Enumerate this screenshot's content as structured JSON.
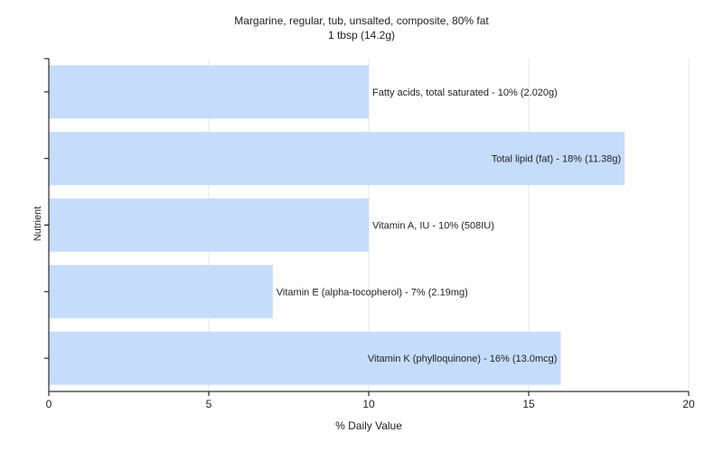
{
  "chart_data": {
    "type": "bar",
    "orientation": "horizontal",
    "title": "Margarine, regular, tub, unsalted, composite, 80% fat",
    "subtitle": "1 tbsp (14.2g)",
    "xlabel": "% Daily Value",
    "ylabel": "Nutrient",
    "xlim": [
      0,
      20
    ],
    "xticks": [
      0,
      5,
      10,
      15,
      20
    ],
    "grid": true,
    "bar_color": "#c6dcfb",
    "categories": [
      "Fatty acids, total saturated",
      "Total lipid (fat)",
      "Vitamin A, IU",
      "Vitamin E (alpha-tocopherol)",
      "Vitamin K (phylloquinone)"
    ],
    "values": [
      10,
      18,
      10,
      7,
      16
    ],
    "labels": [
      "Fatty acids, total saturated - 10% (2.020g)",
      "Total lipid (fat) - 18% (11.38g)",
      "Vitamin A, IU - 10% (508IU)",
      "Vitamin E (alpha-tocopherol) - 7% (2.19mg)",
      "Vitamin K (phylloquinone) - 16% (13.0mcg)"
    ]
  }
}
